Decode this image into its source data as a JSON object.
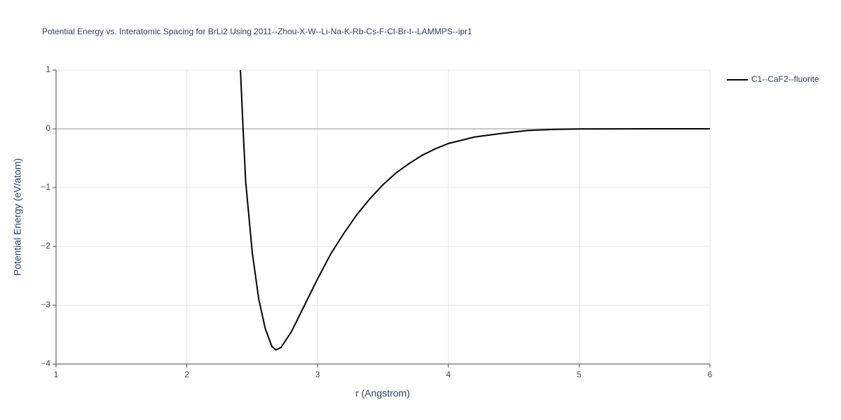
{
  "chart_data": {
    "type": "line",
    "title": "Potential Energy vs. Interatomic Spacing for BrLi2 Using 2011--Zhou-X-W--Li-Na-K-Rb-Cs-F-Cl-Br-I--LAMMPS--ipr1",
    "x_label": "r (Angstrom)",
    "y_label": "Potential Energy (eV/atom)",
    "x": [
      2.41,
      2.43,
      2.45,
      2.5,
      2.55,
      2.6,
      2.65,
      2.68,
      2.72,
      2.8,
      2.9,
      3.0,
      3.1,
      3.2,
      3.3,
      3.4,
      3.5,
      3.6,
      3.7,
      3.8,
      3.9,
      4.0,
      4.2,
      4.4,
      4.6,
      4.8,
      5.0,
      5.5,
      6.0
    ],
    "series": [
      {
        "name": "C1--CaF2--fluorite",
        "color": "#000000",
        "values": [
          1.0,
          0.0,
          -0.9,
          -2.1,
          -2.9,
          -3.4,
          -3.7,
          -3.76,
          -3.72,
          -3.45,
          -3.0,
          -2.55,
          -2.13,
          -1.78,
          -1.46,
          -1.19,
          -0.95,
          -0.75,
          -0.59,
          -0.45,
          -0.34,
          -0.25,
          -0.14,
          -0.08,
          -0.03,
          -0.01,
          -0.003,
          0.0,
          0.0
        ]
      }
    ],
    "xlim": [
      1,
      6
    ],
    "xticks": [
      1,
      2,
      3,
      4,
      5,
      6
    ],
    "ylim": [
      -4,
      1
    ],
    "yticks": [
      {
        "value": -4,
        "label": "−4"
      },
      {
        "value": -3,
        "label": "−3"
      },
      {
        "value": -2,
        "label": "−2"
      },
      {
        "value": -1,
        "label": "−1"
      },
      0,
      1
    ],
    "grid": true,
    "legend": "top-right"
  }
}
